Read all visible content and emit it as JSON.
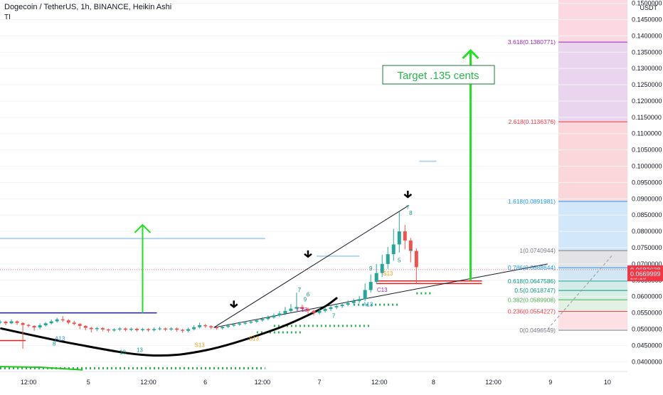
{
  "header": {
    "title": "Dogecoin / TetherUS, 1h, BINANCE, Heikin Ashi",
    "indicator": "TI"
  },
  "currency": "USDT",
  "chart_data": {
    "type": "candlestick",
    "symbol": "DOGEUSDT",
    "ylim": [
      0.037,
      0.151
    ],
    "yticks": [
      0.04,
      0.045,
      0.05,
      0.055,
      0.06,
      0.065,
      0.07,
      0.075,
      0.08,
      0.085,
      0.09,
      0.095,
      0.1,
      0.105,
      0.11,
      0.115,
      0.12,
      0.125,
      0.13,
      0.135,
      0.14,
      0.145,
      0.15
    ],
    "ytick_labels": [
      "0.0400000",
      "0.0450000",
      "0.0500000",
      "0.0550000",
      "0.0600000",
      "0.0650000",
      "0.0700000",
      "0.0750000",
      "0.0800000",
      "0.0850000",
      "0.0900000",
      "0.0950000",
      "0.1000000",
      "0.1050000",
      "0.1100000",
      "0.1150000",
      "0.1200000",
      "0.1250000",
      "0.1300000",
      "0.1350000",
      "0.1400000",
      "0.1450000",
      "0.1500000"
    ],
    "xlim": [
      0,
      110
    ],
    "xticks": [
      {
        "x": 5,
        "label": "12:00"
      },
      {
        "x": 15.5,
        "label": "5"
      },
      {
        "x": 26,
        "label": "12:00"
      },
      {
        "x": 36,
        "label": "6"
      },
      {
        "x": 46,
        "label": "12:00"
      },
      {
        "x": 56,
        "label": "7"
      },
      {
        "x": 66.5,
        "label": "12:00"
      },
      {
        "x": 76,
        "label": "8"
      },
      {
        "x": 86.5,
        "label": "12:00"
      },
      {
        "x": 96.5,
        "label": "9"
      },
      {
        "x": 106.5,
        "label": "10"
      }
    ],
    "candles": [
      {
        "x": 0,
        "o": 0.052,
        "c": 0.0523,
        "h": 0.0528,
        "l": 0.0515
      },
      {
        "x": 1,
        "o": 0.0523,
        "c": 0.0518,
        "h": 0.0526,
        "l": 0.0512
      },
      {
        "x": 2,
        "o": 0.0518,
        "c": 0.0524,
        "h": 0.053,
        "l": 0.0515
      },
      {
        "x": 3,
        "o": 0.0524,
        "c": 0.0519,
        "h": 0.0527,
        "l": 0.0513
      },
      {
        "x": 4,
        "o": 0.0519,
        "c": 0.0513,
        "h": 0.0521,
        "l": 0.044
      },
      {
        "x": 5,
        "o": 0.0513,
        "c": 0.051,
        "h": 0.0516,
        "l": 0.0505
      },
      {
        "x": 6,
        "o": 0.051,
        "c": 0.0505,
        "h": 0.0512,
        "l": 0.0495
      },
      {
        "x": 7,
        "o": 0.0505,
        "c": 0.0512,
        "h": 0.0518,
        "l": 0.05
      },
      {
        "x": 8,
        "o": 0.0512,
        "c": 0.0518,
        "h": 0.0522,
        "l": 0.0508
      },
      {
        "x": 9,
        "o": 0.0518,
        "c": 0.0524,
        "h": 0.053,
        "l": 0.0514
      },
      {
        "x": 10,
        "o": 0.0524,
        "c": 0.053,
        "h": 0.0535,
        "l": 0.052
      },
      {
        "x": 11,
        "o": 0.053,
        "c": 0.0527,
        "h": 0.054,
        "l": 0.0522
      },
      {
        "x": 12,
        "o": 0.0527,
        "c": 0.052,
        "h": 0.0531,
        "l": 0.0515
      },
      {
        "x": 13,
        "o": 0.052,
        "c": 0.0516,
        "h": 0.0526,
        "l": 0.0512
      },
      {
        "x": 14,
        "o": 0.0516,
        "c": 0.051,
        "h": 0.0518,
        "l": 0.05
      },
      {
        "x": 15,
        "o": 0.051,
        "c": 0.0504,
        "h": 0.0512,
        "l": 0.0496
      },
      {
        "x": 16,
        "o": 0.0504,
        "c": 0.05,
        "h": 0.0507,
        "l": 0.049
      },
      {
        "x": 17,
        "o": 0.05,
        "c": 0.0503,
        "h": 0.0507,
        "l": 0.0494
      },
      {
        "x": 18,
        "o": 0.0503,
        "c": 0.0499,
        "h": 0.0506,
        "l": 0.0493
      },
      {
        "x": 19,
        "o": 0.0499,
        "c": 0.0496,
        "h": 0.0502,
        "l": 0.049
      },
      {
        "x": 20,
        "o": 0.0496,
        "c": 0.0499,
        "h": 0.0503,
        "l": 0.0492
      },
      {
        "x": 21,
        "o": 0.0499,
        "c": 0.0502,
        "h": 0.0506,
        "l": 0.0494
      },
      {
        "x": 22,
        "o": 0.0502,
        "c": 0.0498,
        "h": 0.0505,
        "l": 0.0493
      },
      {
        "x": 23,
        "o": 0.0498,
        "c": 0.0501,
        "h": 0.0505,
        "l": 0.0494
      },
      {
        "x": 24,
        "o": 0.0501,
        "c": 0.0497,
        "h": 0.0504,
        "l": 0.0492
      },
      {
        "x": 25,
        "o": 0.0497,
        "c": 0.05,
        "h": 0.0504,
        "l": 0.0493
      },
      {
        "x": 26,
        "o": 0.05,
        "c": 0.0497,
        "h": 0.0503,
        "l": 0.0492
      },
      {
        "x": 27,
        "o": 0.0497,
        "c": 0.05,
        "h": 0.0505,
        "l": 0.0493
      },
      {
        "x": 28,
        "o": 0.05,
        "c": 0.0502,
        "h": 0.0507,
        "l": 0.0496
      },
      {
        "x": 29,
        "o": 0.0502,
        "c": 0.0499,
        "h": 0.0505,
        "l": 0.0494
      },
      {
        "x": 30,
        "o": 0.0499,
        "c": 0.0502,
        "h": 0.0506,
        "l": 0.0495
      },
      {
        "x": 31,
        "o": 0.0502,
        "c": 0.0498,
        "h": 0.0505,
        "l": 0.0492
      },
      {
        "x": 32,
        "o": 0.0498,
        "c": 0.0495,
        "h": 0.0501,
        "l": 0.0489
      },
      {
        "x": 33,
        "o": 0.0495,
        "c": 0.05,
        "h": 0.0505,
        "l": 0.049
      },
      {
        "x": 34,
        "o": 0.05,
        "c": 0.0506,
        "h": 0.0512,
        "l": 0.0496
      },
      {
        "x": 35,
        "o": 0.0506,
        "c": 0.0512,
        "h": 0.052,
        "l": 0.0502
      },
      {
        "x": 36,
        "o": 0.0512,
        "c": 0.0509,
        "h": 0.0516,
        "l": 0.0504
      },
      {
        "x": 37,
        "o": 0.0509,
        "c": 0.0505,
        "h": 0.0512,
        "l": 0.05
      },
      {
        "x": 38,
        "o": 0.0505,
        "c": 0.0503,
        "h": 0.0509,
        "l": 0.0498
      },
      {
        "x": 39,
        "o": 0.0503,
        "c": 0.0507,
        "h": 0.0512,
        "l": 0.0499
      },
      {
        "x": 40,
        "o": 0.0507,
        "c": 0.0511,
        "h": 0.0516,
        "l": 0.0503
      },
      {
        "x": 41,
        "o": 0.0511,
        "c": 0.0514,
        "h": 0.0519,
        "l": 0.0507
      },
      {
        "x": 42,
        "o": 0.0514,
        "c": 0.0517,
        "h": 0.0522,
        "l": 0.051
      },
      {
        "x": 43,
        "o": 0.0517,
        "c": 0.052,
        "h": 0.0525,
        "l": 0.0513
      },
      {
        "x": 44,
        "o": 0.052,
        "c": 0.0523,
        "h": 0.0528,
        "l": 0.0516
      },
      {
        "x": 45,
        "o": 0.0523,
        "c": 0.0527,
        "h": 0.0532,
        "l": 0.0519
      },
      {
        "x": 46,
        "o": 0.0527,
        "c": 0.0531,
        "h": 0.0537,
        "l": 0.0523
      },
      {
        "x": 47,
        "o": 0.0531,
        "c": 0.0536,
        "h": 0.0542,
        "l": 0.0527
      },
      {
        "x": 48,
        "o": 0.0536,
        "c": 0.0542,
        "h": 0.0548,
        "l": 0.0532
      },
      {
        "x": 49,
        "o": 0.0542,
        "c": 0.0548,
        "h": 0.0555,
        "l": 0.0537
      },
      {
        "x": 50,
        "o": 0.0548,
        "c": 0.0556,
        "h": 0.0568,
        "l": 0.0543
      },
      {
        "x": 51,
        "o": 0.0556,
        "c": 0.0563,
        "h": 0.0577,
        "l": 0.055
      },
      {
        "x": 52,
        "o": 0.0563,
        "c": 0.0568,
        "h": 0.0612,
        "l": 0.0556
      },
      {
        "x": 53,
        "o": 0.0568,
        "c": 0.0562,
        "h": 0.0575,
        "l": 0.0555
      },
      {
        "x": 54,
        "o": 0.0562,
        "c": 0.0556,
        "h": 0.0566,
        "l": 0.0548
      },
      {
        "x": 55,
        "o": 0.0556,
        "c": 0.055,
        "h": 0.056,
        "l": 0.0542
      },
      {
        "x": 56,
        "o": 0.055,
        "c": 0.0556,
        "h": 0.0562,
        "l": 0.0545
      },
      {
        "x": 57,
        "o": 0.0556,
        "c": 0.0562,
        "h": 0.0568,
        "l": 0.0551
      },
      {
        "x": 58,
        "o": 0.0562,
        "c": 0.0567,
        "h": 0.0573,
        "l": 0.0556
      },
      {
        "x": 59,
        "o": 0.0567,
        "c": 0.0571,
        "h": 0.0578,
        "l": 0.0561
      },
      {
        "x": 60,
        "o": 0.0571,
        "c": 0.0575,
        "h": 0.0582,
        "l": 0.0565
      },
      {
        "x": 61,
        "o": 0.0575,
        "c": 0.058,
        "h": 0.0588,
        "l": 0.057
      },
      {
        "x": 62,
        "o": 0.058,
        "c": 0.0586,
        "h": 0.0594,
        "l": 0.0575
      },
      {
        "x": 63,
        "o": 0.0586,
        "c": 0.0592,
        "h": 0.0602,
        "l": 0.058
      },
      {
        "x": 64,
        "o": 0.0592,
        "c": 0.062,
        "h": 0.064,
        "l": 0.0586
      },
      {
        "x": 65,
        "o": 0.062,
        "c": 0.0645,
        "h": 0.0668,
        "l": 0.0612
      },
      {
        "x": 66,
        "o": 0.0645,
        "c": 0.0672,
        "h": 0.07,
        "l": 0.0638
      },
      {
        "x": 67,
        "o": 0.0672,
        "c": 0.07,
        "h": 0.0728,
        "l": 0.066
      },
      {
        "x": 68,
        "o": 0.07,
        "c": 0.073,
        "h": 0.0752,
        "l": 0.0685
      },
      {
        "x": 69,
        "o": 0.073,
        "c": 0.076,
        "h": 0.0808,
        "l": 0.071
      },
      {
        "x": 70,
        "o": 0.076,
        "c": 0.08,
        "h": 0.086,
        "l": 0.0735
      },
      {
        "x": 71,
        "o": 0.08,
        "c": 0.0772,
        "h": 0.082,
        "l": 0.0745
      },
      {
        "x": 72,
        "o": 0.0772,
        "c": 0.074,
        "h": 0.078,
        "l": 0.0705
      },
      {
        "x": 73,
        "o": 0.074,
        "c": 0.069,
        "h": 0.0748,
        "l": 0.064
      }
    ],
    "fibonacci": [
      {
        "level": "0",
        "value": 0.0496549,
        "label": "0(0.0496549)",
        "color": "#787b86"
      },
      {
        "level": "0.236",
        "value": 0.0554227,
        "label": "0.236(0.0554227)",
        "color": "#f23645"
      },
      {
        "level": "0.382",
        "value": 0.0589908,
        "label": "0.382(0.0589908)",
        "color": "#4caf50"
      },
      {
        "level": "0.5",
        "value": 0.0618747,
        "label": "0.5(0.0618747)",
        "color": "#089981"
      },
      {
        "level": "0.618",
        "value": 0.0647586,
        "label": "0.618(0.0647586)",
        "color": "#089981"
      },
      {
        "level": "0.786",
        "value": 0.0688644,
        "label": "0.786(0.0688644)",
        "color": "#2196f3"
      },
      {
        "level": "1",
        "value": 0.0740944,
        "label": "1(0.0740944)",
        "color": "#787b86"
      },
      {
        "level": "1.618",
        "value": 0.0891981,
        "label": "1.618(0.0891981)",
        "color": "#2196f3"
      },
      {
        "level": "2.618",
        "value": 0.1136376,
        "label": "2.618(0.1136376)",
        "color": "#f23645"
      },
      {
        "level": "3.618",
        "value": 0.1380771,
        "label": "3.618(0.1380771)",
        "color": "#9c27b0"
      }
    ],
    "fib_zones": [
      {
        "from": 0.0496549,
        "to": 0.0554227,
        "color": "#fde0e3"
      },
      {
        "from": 0.0554227,
        "to": 0.0589908,
        "color": "#e3f1e4"
      },
      {
        "from": 0.0589908,
        "to": 0.0618747,
        "color": "#d7efe4"
      },
      {
        "from": 0.0618747,
        "to": 0.0647586,
        "color": "#d4ece9"
      },
      {
        "from": 0.0647586,
        "to": 0.0688644,
        "color": "#d3e6f3"
      },
      {
        "from": 0.0688644,
        "to": 0.0740944,
        "color": "#e3e3e6"
      },
      {
        "from": 0.0740944,
        "to": 0.0891981,
        "color": "#d3e7fb"
      },
      {
        "from": 0.0891981,
        "to": 0.1136376,
        "color": "#fbd6da"
      },
      {
        "from": 0.1136376,
        "to": 0.1380771,
        "color": "#ead5ef"
      },
      {
        "from": 0.1380771,
        "to": 0.151,
        "color": "#fbd8e2"
      }
    ],
    "price_labels": [
      {
        "value": 0.0682638,
        "text": "0.0682638",
        "color": "#f23645"
      },
      {
        "value": 0.066,
        "text": "29:10",
        "color": "#f23645"
      },
      {
        "value": 0.0669999,
        "text": "0.0669999",
        "color": "#f23645"
      }
    ],
    "annotations": {
      "target_text": "Target .135 cents",
      "big_arrow": {
        "x": 82.5,
        "from": 0.065,
        "to": 0.1355
      },
      "small_arrow": {
        "x": 25,
        "from": 0.055,
        "to": 0.082
      },
      "down_arrows": [
        {
          "x": 41,
          "y": 0.0568
        },
        {
          "x": 54,
          "y": 0.0722
        },
        {
          "x": 71.5,
          "y": 0.0905
        }
      ],
      "cup_curve": [
        [
          0.2,
          0.0502
        ],
        [
          13,
          0.0455
        ],
        [
          26,
          0.042
        ],
        [
          36,
          0.0435
        ],
        [
          48,
          0.0498
        ],
        [
          56,
          0.056
        ],
        [
          59,
          0.0595
        ]
      ],
      "wedge_upper": [
        [
          37.5,
          0.0505
        ],
        [
          71.5,
          0.0878
        ]
      ],
      "wedge_lower": [
        [
          37.5,
          0.0505
        ],
        [
          96,
          0.07
        ]
      ],
      "blue_box_line": {
        "x1": 0,
        "x2": 27.5,
        "y": 0.055,
        "color": "#1c1cc4"
      },
      "red_lines": [
        {
          "x1": 0,
          "x2": 4.5,
          "y": 0.0465
        },
        {
          "x1": 66,
          "x2": 84.5,
          "y": 0.0648
        },
        {
          "x1": 66,
          "x2": 84.5,
          "y": 0.064
        }
      ],
      "light_blue_lines": [
        {
          "x1": 0,
          "x2": 46.5,
          "y": 0.0778
        },
        {
          "x1": 55.5,
          "x2": 63,
          "y": 0.0724
        },
        {
          "x1": 73.5,
          "x2": 76.5,
          "y": 0.1015
        }
      ],
      "dotted_green_lines": [
        {
          "x1": 0,
          "x2": 46.5,
          "y": 0.038
        },
        {
          "x1": 48,
          "x2": 65,
          "y": 0.051
        },
        {
          "x1": 45,
          "x2": 53,
          "y": 0.049
        },
        {
          "x1": 62,
          "x2": 70,
          "y": 0.0575
        },
        {
          "x1": 73,
          "x2": 76,
          "y": 0.061
        }
      ],
      "bottom_green_line": [
        [
          0,
          0.0385
        ],
        [
          7,
          0.0383
        ],
        [
          14.5,
          0.0375
        ]
      ],
      "dashed_diag": [
        [
          96,
          0.05
        ],
        [
          107.5,
          0.073
        ]
      ],
      "dotted_red_price": 0.0682638,
      "markers": [
        {
          "x": 10.5,
          "y": 0.0465,
          "t": "A13",
          "c": "#2196f3"
        },
        {
          "x": 9.5,
          "y": 0.045,
          "t": "8",
          "c": "#089981"
        },
        {
          "x": 21.5,
          "y": 0.0424,
          "t": "10",
          "c": "#089981"
        },
        {
          "x": 24.5,
          "y": 0.043,
          "t": "13",
          "c": "#089981"
        },
        {
          "x": 35,
          "y": 0.0445,
          "t": "S13",
          "c": "#f39c12"
        },
        {
          "x": 44.5,
          "y": 0.0465,
          "t": "S13",
          "c": "#f39c12"
        },
        {
          "x": 53,
          "y": 0.0553,
          "t": "C13",
          "c": "#9c27b0"
        },
        {
          "x": 53.5,
          "y": 0.0585,
          "t": "9",
          "c": "#089981"
        },
        {
          "x": 58.5,
          "y": 0.0535,
          "t": "7",
          "c": "#089981"
        },
        {
          "x": 64.5,
          "y": 0.057,
          "t": "A13",
          "c": "#2196f3"
        },
        {
          "x": 67,
          "y": 0.0615,
          "t": "C13",
          "c": "#9c27b0"
        },
        {
          "x": 68,
          "y": 0.0665,
          "t": "S13",
          "c": "#f39c12"
        },
        {
          "x": 70,
          "y": 0.0705,
          "t": "5",
          "c": "#089981"
        },
        {
          "x": 72,
          "y": 0.0732,
          "t": "7",
          "c": "#089981"
        },
        {
          "x": 71.5,
          "y": 0.0868,
          "t": "7",
          "c": "#089981"
        },
        {
          "x": 72,
          "y": 0.085,
          "t": "8",
          "c": "#089981"
        },
        {
          "x": 65,
          "y": 0.068,
          "t": "9",
          "c": "#089981"
        },
        {
          "x": 54,
          "y": 0.06,
          "t": "6",
          "c": "#089981"
        },
        {
          "x": 52.5,
          "y": 0.0615,
          "t": "7",
          "c": "#089981"
        }
      ]
    }
  }
}
